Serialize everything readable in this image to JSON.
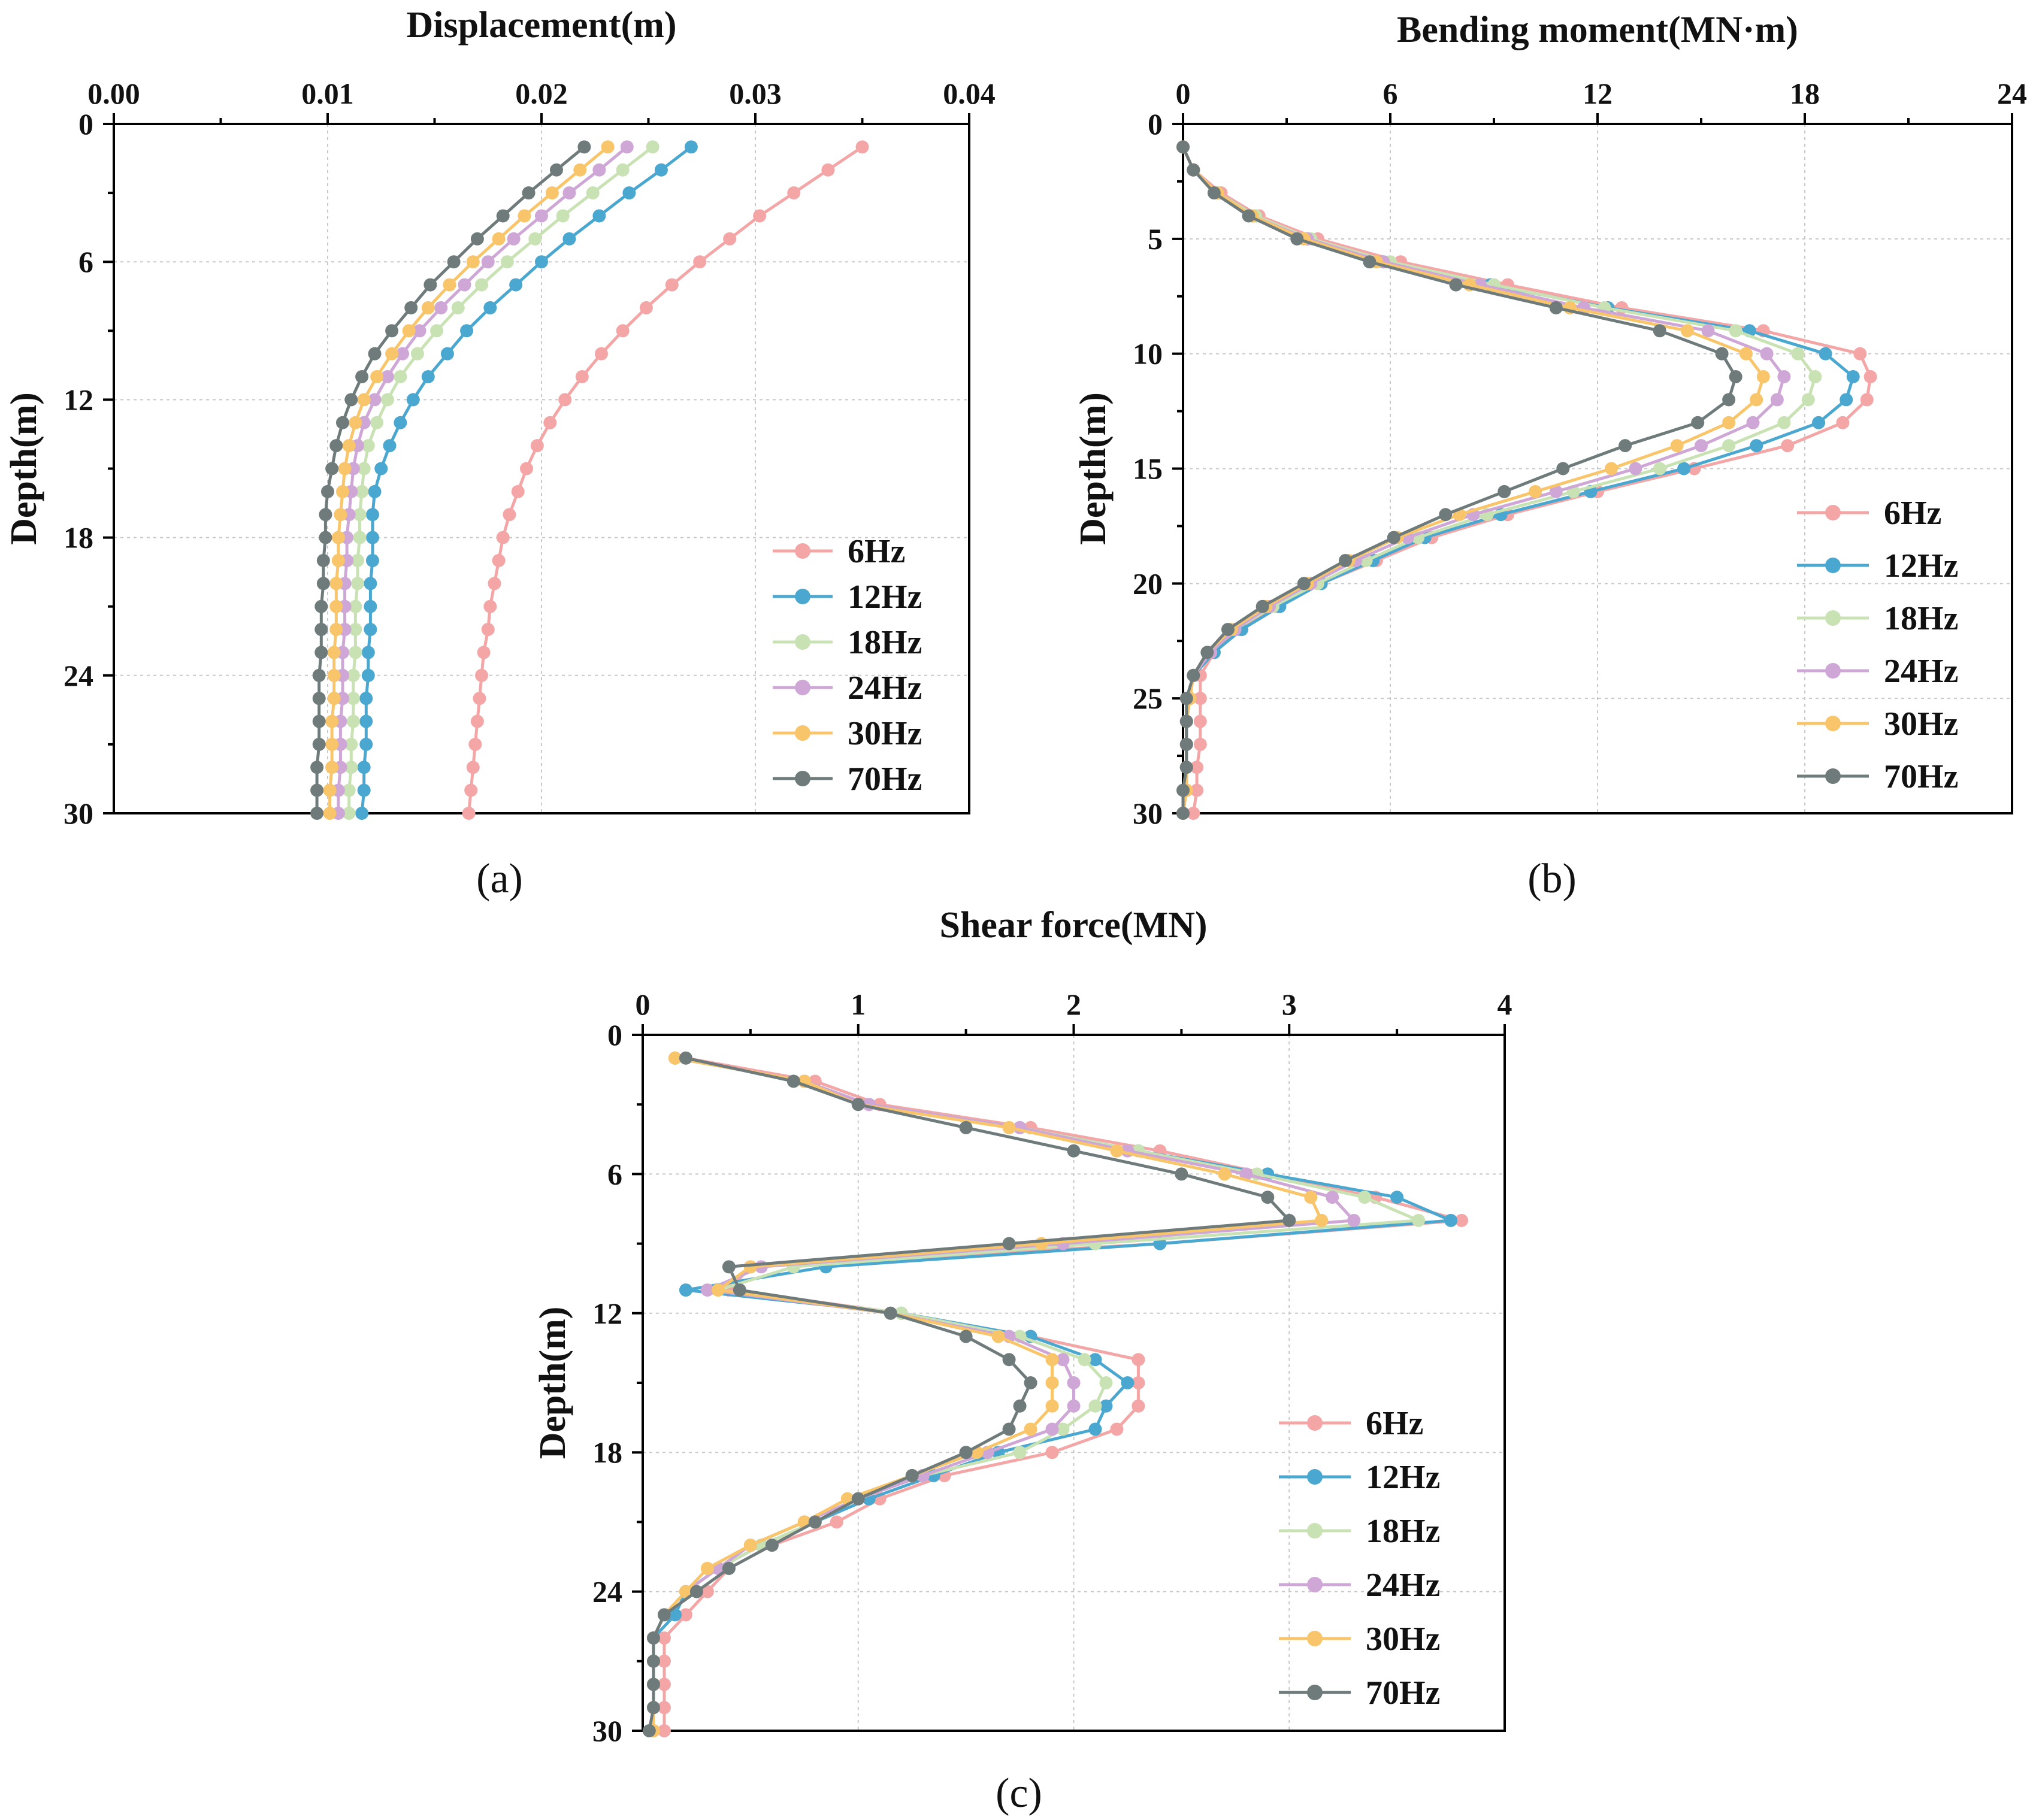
{
  "colors": {
    "6Hz": "#f4a6a6",
    "12Hz": "#4aa7d0",
    "18Hz": "#c9e2b3",
    "24Hz": "#cfa7d6",
    "30Hz": "#f9c56a",
    "70Hz": "#6f7b7b"
  },
  "chart_data": [
    {
      "id": "a",
      "type": "line",
      "panel_label": "(a)",
      "title": "Displacement(m)",
      "xlabel": "Displacement(m)",
      "ylabel": "Depth(m)",
      "xlim": [
        0,
        0.04
      ],
      "ylim": [
        0,
        30
      ],
      "x_ticks": [
        "0.00",
        "0.01",
        "0.02",
        "0.03",
        "0.04"
      ],
      "x_tick_values": [
        0,
        0.01,
        0.02,
        0.03,
        0.04
      ],
      "y_ticks": [
        "0",
        "6",
        "12",
        "18",
        "24",
        "30"
      ],
      "y_tick_values": [
        0,
        6,
        12,
        18,
        24,
        30
      ],
      "legend_position": "bottom-right",
      "depth": [
        1,
        2,
        3,
        4,
        5,
        6,
        7,
        8,
        9,
        10,
        11,
        12,
        13,
        14,
        15,
        16,
        17,
        18,
        19,
        20,
        21,
        22,
        23,
        24,
        25,
        26,
        27,
        28,
        29,
        30
      ],
      "series": [
        {
          "name": "6Hz",
          "values": [
            0.035,
            0.0334,
            0.0318,
            0.0302,
            0.0288,
            0.0274,
            0.0261,
            0.0249,
            0.0238,
            0.0228,
            0.0219,
            0.0211,
            0.0204,
            0.0198,
            0.0193,
            0.0189,
            0.0185,
            0.0182,
            0.018,
            0.0178,
            0.0176,
            0.0175,
            0.0173,
            0.0172,
            0.0171,
            0.017,
            0.0169,
            0.0168,
            0.0167,
            0.0166
          ]
        },
        {
          "name": "12Hz",
          "values": [
            0.027,
            0.0256,
            0.0241,
            0.0227,
            0.0213,
            0.02,
            0.0188,
            0.0176,
            0.0165,
            0.0156,
            0.0147,
            0.014,
            0.0134,
            0.0129,
            0.0125,
            0.0122,
            0.0121,
            0.0121,
            0.0121,
            0.012,
            0.012,
            0.012,
            0.0119,
            0.0119,
            0.0118,
            0.0118,
            0.0118,
            0.0117,
            0.0117,
            0.0116
          ]
        },
        {
          "name": "18Hz",
          "values": [
            0.0252,
            0.0238,
            0.0224,
            0.021,
            0.0197,
            0.0184,
            0.0172,
            0.0161,
            0.0151,
            0.0142,
            0.0134,
            0.0128,
            0.0123,
            0.0119,
            0.0117,
            0.0116,
            0.0115,
            0.0115,
            0.0114,
            0.0114,
            0.0113,
            0.0113,
            0.0113,
            0.0112,
            0.0112,
            0.0112,
            0.0111,
            0.0111,
            0.011,
            0.011
          ]
        },
        {
          "name": "24Hz",
          "values": [
            0.024,
            0.0227,
            0.0213,
            0.02,
            0.0187,
            0.0175,
            0.0164,
            0.0153,
            0.0143,
            0.0135,
            0.0128,
            0.0122,
            0.0117,
            0.0114,
            0.0112,
            0.0111,
            0.011,
            0.0109,
            0.0109,
            0.0108,
            0.0108,
            0.0108,
            0.0107,
            0.0107,
            0.0107,
            0.0106,
            0.0106,
            0.0106,
            0.0105,
            0.0105
          ]
        },
        {
          "name": "30Hz",
          "values": [
            0.0231,
            0.0218,
            0.0205,
            0.0192,
            0.018,
            0.0168,
            0.0157,
            0.0147,
            0.0138,
            0.013,
            0.0123,
            0.0117,
            0.0113,
            0.011,
            0.0108,
            0.0107,
            0.0106,
            0.0105,
            0.0105,
            0.0104,
            0.0104,
            0.0104,
            0.0103,
            0.0103,
            0.0103,
            0.0102,
            0.0102,
            0.0102,
            0.0101,
            0.0101
          ]
        },
        {
          "name": "70Hz",
          "values": [
            0.022,
            0.0207,
            0.0194,
            0.0182,
            0.017,
            0.0159,
            0.0148,
            0.0139,
            0.013,
            0.0122,
            0.0116,
            0.0111,
            0.0107,
            0.0104,
            0.0102,
            0.01,
            0.0099,
            0.0099,
            0.0098,
            0.0098,
            0.0097,
            0.0097,
            0.0097,
            0.0096,
            0.0096,
            0.0096,
            0.0096,
            0.0095,
            0.0095,
            0.0095
          ]
        }
      ]
    },
    {
      "id": "b",
      "type": "line",
      "panel_label": "(b)",
      "title": "Bending moment(MN·m)",
      "xlabel": "Bending moment(MN·m)",
      "ylabel": "Depth(m)",
      "xlim": [
        0,
        24
      ],
      "ylim": [
        0,
        30
      ],
      "x_ticks": [
        "0",
        "6",
        "12",
        "18",
        "24"
      ],
      "x_tick_values": [
        0,
        6,
        12,
        18,
        24
      ],
      "y_ticks": [
        "0",
        "5",
        "10",
        "15",
        "20",
        "25",
        "30"
      ],
      "y_tick_values": [
        0,
        5,
        10,
        15,
        20,
        25,
        30
      ],
      "legend_position": "bottom-right",
      "depth": [
        1,
        2,
        3,
        4,
        5,
        6,
        7,
        8,
        9,
        10,
        11,
        12,
        13,
        14,
        15,
        16,
        17,
        18,
        19,
        20,
        21,
        22,
        23,
        24,
        25,
        26,
        27,
        28,
        29,
        30
      ],
      "series": [
        {
          "name": "6Hz",
          "values": [
            0.0,
            0.3,
            1.1,
            2.2,
            3.9,
            6.3,
            9.4,
            12.7,
            16.8,
            19.6,
            19.9,
            19.8,
            19.1,
            17.5,
            14.8,
            12.0,
            9.4,
            7.2,
            5.6,
            4.0,
            2.7,
            1.6,
            0.9,
            0.5,
            0.5,
            0.5,
            0.5,
            0.4,
            0.4,
            0.3
          ]
        },
        {
          "name": "12Hz",
          "values": [
            0.0,
            0.3,
            1.0,
            2.1,
            3.6,
            5.8,
            8.9,
            12.3,
            16.4,
            18.6,
            19.4,
            19.2,
            18.4,
            16.6,
            14.5,
            11.8,
            9.2,
            7.0,
            5.5,
            4.0,
            2.8,
            1.7,
            0.9,
            0.3,
            0.2,
            0.1,
            0.1,
            0.1,
            0.1,
            0.0
          ]
        },
        {
          "name": "18Hz",
          "values": [
            0.0,
            0.3,
            1.0,
            2.1,
            3.7,
            6.0,
            9.0,
            12.2,
            16.0,
            17.8,
            18.3,
            18.1,
            17.4,
            15.8,
            13.8,
            11.3,
            8.8,
            6.8,
            5.3,
            3.9,
            2.6,
            1.5,
            0.8,
            0.3,
            0.2,
            0.1,
            0.1,
            0.1,
            0.1,
            0.0
          ]
        },
        {
          "name": "24Hz",
          "values": [
            0.0,
            0.3,
            1.0,
            2.0,
            3.6,
            5.8,
            8.6,
            11.6,
            15.2,
            16.9,
            17.4,
            17.2,
            16.5,
            15.0,
            13.1,
            10.8,
            8.4,
            6.5,
            5.0,
            3.7,
            2.5,
            1.5,
            0.8,
            0.3,
            0.2,
            0.1,
            0.1,
            0.1,
            0.1,
            0.0
          ]
        },
        {
          "name": "30Hz",
          "values": [
            0.0,
            0.3,
            1.0,
            2.0,
            3.5,
            5.6,
            8.3,
            11.2,
            14.6,
            16.3,
            16.8,
            16.6,
            15.8,
            14.3,
            12.4,
            10.2,
            8.0,
            6.2,
            4.8,
            3.6,
            2.4,
            1.4,
            0.7,
            0.3,
            0.2,
            0.1,
            0.1,
            0.1,
            0.1,
            0.0
          ]
        },
        {
          "name": "70Hz",
          "values": [
            0.0,
            0.3,
            0.9,
            1.9,
            3.3,
            5.4,
            7.9,
            10.8,
            13.8,
            15.6,
            16.0,
            15.8,
            14.9,
            12.8,
            11.0,
            9.3,
            7.6,
            6.1,
            4.7,
            3.5,
            2.3,
            1.3,
            0.7,
            0.3,
            0.1,
            0.1,
            0.1,
            0.1,
            0.0,
            0.0
          ]
        }
      ]
    },
    {
      "id": "c",
      "type": "line",
      "panel_label": "(c)",
      "title": "Shear force(MN)",
      "xlabel": "Shear force(MN)",
      "ylabel": "Depth(m)",
      "xlim": [
        0,
        4
      ],
      "ylim": [
        0,
        30
      ],
      "x_ticks": [
        "0",
        "1",
        "2",
        "3",
        "4"
      ],
      "x_tick_values": [
        0,
        1,
        2,
        3,
        4
      ],
      "y_ticks": [
        "0",
        "6",
        "12",
        "18",
        "24",
        "30"
      ],
      "y_tick_values": [
        0,
        6,
        12,
        18,
        24,
        30
      ],
      "legend_position": "bottom-right",
      "depth": [
        1,
        2,
        3,
        4,
        5,
        6,
        7,
        8,
        9,
        10,
        11,
        12,
        13,
        14,
        15,
        16,
        17,
        18,
        19,
        20,
        21,
        22,
        23,
        24,
        25,
        26,
        27,
        28,
        29,
        30
      ],
      "series": [
        {
          "name": "6Hz",
          "values": [
            0.2,
            0.8,
            1.1,
            1.8,
            2.4,
            2.9,
            3.4,
            3.8,
            2.4,
            0.5,
            0.4,
            1.2,
            1.8,
            2.3,
            2.3,
            2.3,
            2.2,
            1.9,
            1.4,
            1.1,
            0.9,
            0.6,
            0.4,
            0.3,
            0.2,
            0.1,
            0.1,
            0.1,
            0.1,
            0.1
          ]
        },
        {
          "name": "12Hz",
          "values": [
            0.15,
            0.75,
            1.05,
            1.75,
            2.3,
            2.9,
            3.5,
            3.75,
            2.4,
            0.85,
            0.2,
            1.2,
            1.8,
            2.1,
            2.25,
            2.15,
            2.1,
            1.65,
            1.35,
            1.05,
            0.8,
            0.55,
            0.35,
            0.2,
            0.15,
            0.05,
            0.05,
            0.05,
            0.05,
            0.05
          ]
        },
        {
          "name": "18Hz",
          "values": [
            0.15,
            0.75,
            1.05,
            1.75,
            2.3,
            2.85,
            3.35,
            3.6,
            2.1,
            0.7,
            0.35,
            1.2,
            1.75,
            2.05,
            2.15,
            2.1,
            1.95,
            1.75,
            1.3,
            1.0,
            0.8,
            0.55,
            0.35,
            0.2,
            0.1,
            0.05,
            0.05,
            0.05,
            0.05,
            0.05
          ]
        },
        {
          "name": "24Hz",
          "values": [
            0.15,
            0.75,
            1.05,
            1.75,
            2.25,
            2.8,
            3.2,
            3.3,
            1.95,
            0.55,
            0.3,
            1.15,
            1.7,
            1.95,
            2.0,
            2.0,
            1.9,
            1.6,
            1.3,
            1.0,
            0.75,
            0.5,
            0.35,
            0.2,
            0.1,
            0.05,
            0.05,
            0.05,
            0.05,
            0.05
          ]
        },
        {
          "name": "30Hz",
          "values": [
            0.15,
            0.75,
            1.0,
            1.7,
            2.2,
            2.7,
            3.1,
            3.15,
            1.85,
            0.5,
            0.35,
            1.15,
            1.65,
            1.9,
            1.9,
            1.9,
            1.8,
            1.55,
            1.25,
            0.95,
            0.75,
            0.5,
            0.3,
            0.2,
            0.1,
            0.05,
            0.05,
            0.05,
            0.05,
            0.05
          ]
        },
        {
          "name": "70Hz",
          "values": [
            0.2,
            0.7,
            1.0,
            1.5,
            2.0,
            2.5,
            2.9,
            3.0,
            1.7,
            0.4,
            0.45,
            1.15,
            1.5,
            1.7,
            1.8,
            1.75,
            1.7,
            1.5,
            1.25,
            1.0,
            0.8,
            0.6,
            0.4,
            0.25,
            0.1,
            0.05,
            0.05,
            0.05,
            0.05,
            0.03
          ]
        }
      ]
    }
  ]
}
